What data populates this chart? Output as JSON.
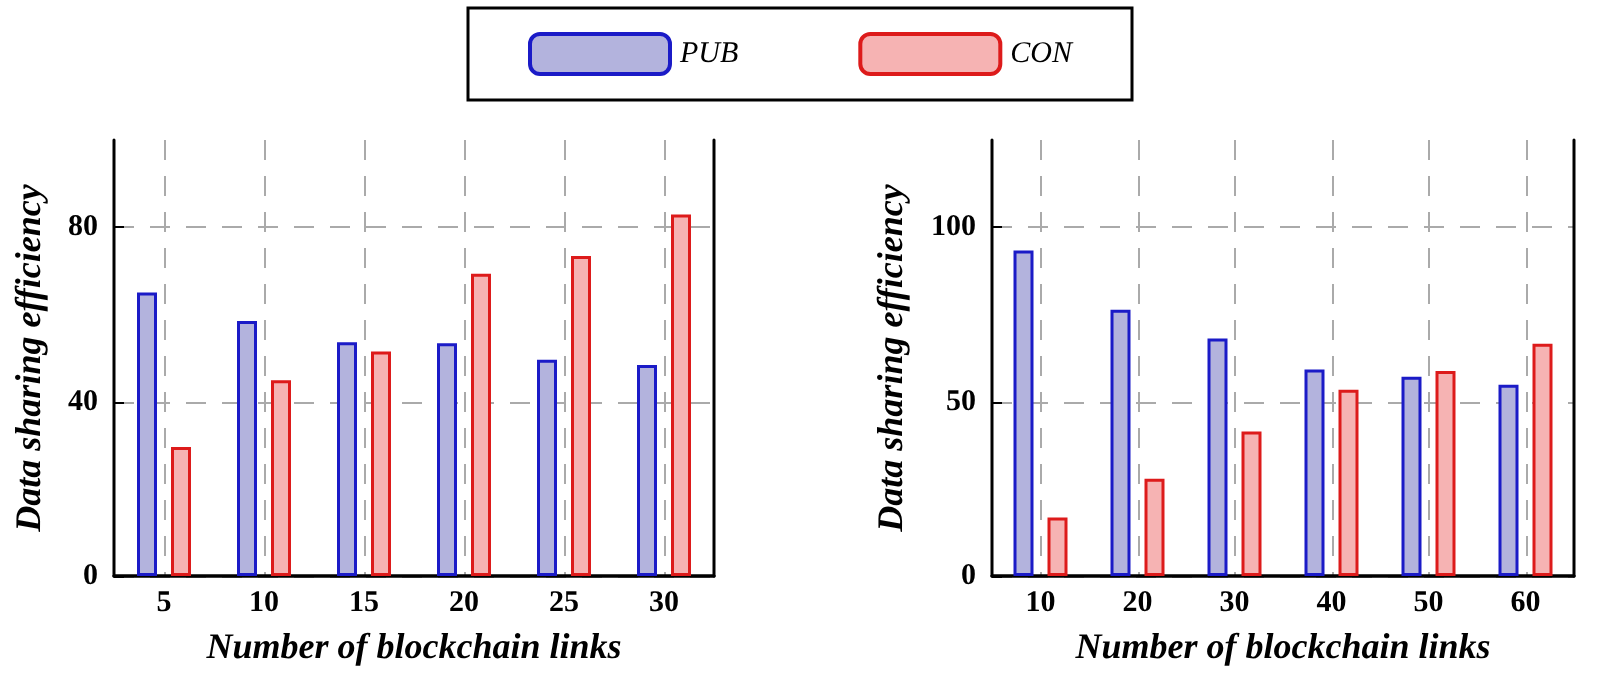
{
  "chart_data": [
    {
      "type": "bar",
      "xlabel": "Number of blockchain links",
      "ylabel": "Data sharing efficiency",
      "categories": [
        "5",
        "10",
        "15",
        "20",
        "25",
        "30"
      ],
      "series": [
        {
          "name": "PUB",
          "color": "#b3b3dd",
          "values": [
            65,
            58.5,
            53.6,
            53.4,
            49.6,
            48.4
          ]
        },
        {
          "name": "CON",
          "color": "#f6b3b3",
          "values": [
            29.6,
            44.9,
            51.5,
            69.3,
            73.4,
            82.9
          ]
        }
      ],
      "ylim": [
        0,
        100
      ],
      "yticks": [
        0,
        40,
        80
      ],
      "grid": true,
      "legend": "top"
    },
    {
      "type": "bar",
      "xlabel": "Number of blockchain links",
      "ylabel": "Data sharing efficiency",
      "categories": [
        "10",
        "20",
        "30",
        "40",
        "50",
        "60"
      ],
      "series": [
        {
          "name": "PUB",
          "color": "#b3b3dd",
          "values": [
            93.3,
            76.3,
            68.1,
            59.2,
            57.1,
            54.8
          ]
        },
        {
          "name": "CON",
          "color": "#f6b3b3",
          "values": [
            16.8,
            27.9,
            41.4,
            53.4,
            58.8,
            66.6
          ]
        }
      ],
      "ylim": [
        0,
        125
      ],
      "yticks": [
        0,
        50,
        100
      ],
      "grid": true
    }
  ]
}
